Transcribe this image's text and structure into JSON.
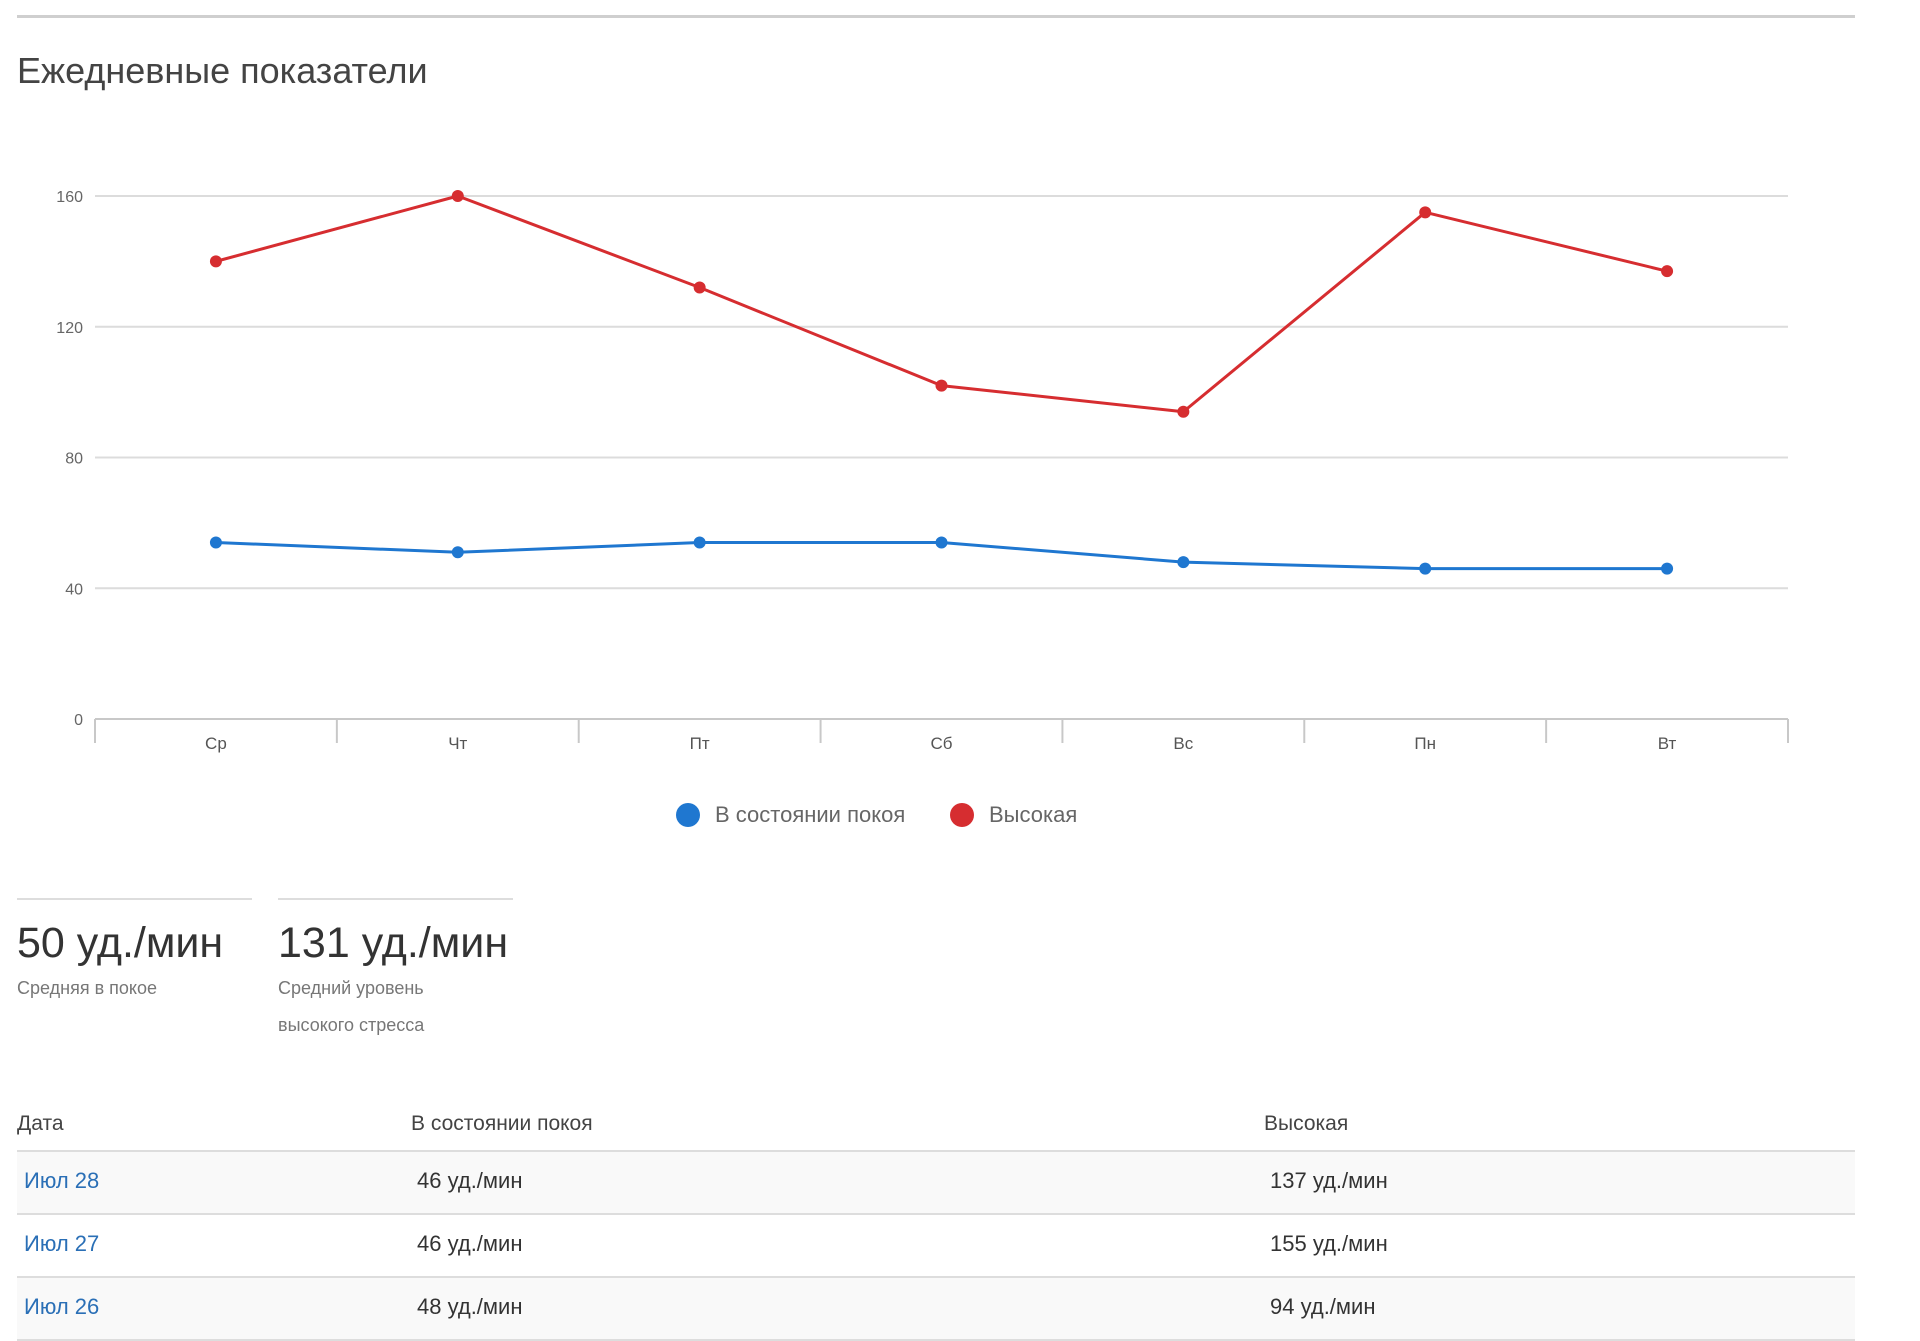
{
  "section": {
    "title": "Ежедневные показатели"
  },
  "chart_data": {
    "type": "line",
    "categories": [
      "Ср",
      "Чт",
      "Пт",
      "Сб",
      "Вс",
      "Пн",
      "Вт"
    ],
    "series": [
      {
        "name": "В состоянии покоя",
        "color": "#1f77d0",
        "values": [
          54,
          51,
          54,
          54,
          48,
          46,
          46
        ]
      },
      {
        "name": "Высокая",
        "color": "#d62d30",
        "values": [
          140,
          160,
          132,
          102,
          94,
          155,
          137
        ]
      }
    ],
    "yticks": [
      0,
      40,
      80,
      120,
      160
    ],
    "ylim": [
      0,
      160
    ],
    "grid": true,
    "legend_position": "bottom"
  },
  "summary": [
    {
      "value": "50 уд./мин",
      "label": "Средняя в покое"
    },
    {
      "value": "131 уд./мин",
      "label_lines": [
        "Средний уровень",
        "высокого стресса"
      ]
    }
  ],
  "table": {
    "headers": [
      "Дата",
      "В состоянии покоя",
      "Высокая"
    ],
    "rows": [
      {
        "date": "Июл 28",
        "rest": "46 уд./мин",
        "high": "137 уд./мин"
      },
      {
        "date": "Июл 27",
        "rest": "46 уд./мин",
        "high": "155 уд./мин"
      },
      {
        "date": "Июл 26",
        "rest": "48 уд./мин",
        "high": "94 уд./мин"
      }
    ]
  }
}
